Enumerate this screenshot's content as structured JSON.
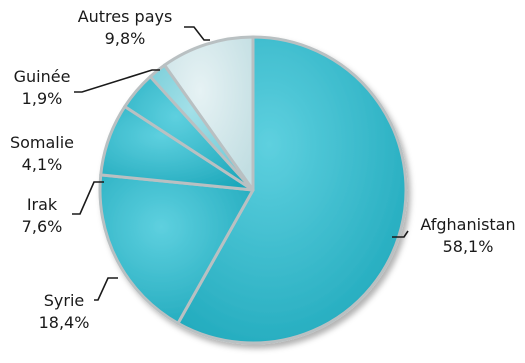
{
  "chart_data": {
    "type": "pie",
    "slices": [
      {
        "label": "Afghanistan",
        "value": 58.1,
        "value_text": "58,1%",
        "color": "#25b3c6"
      },
      {
        "label": "Syrie",
        "value": 18.4,
        "value_text": "18,4%",
        "color": "#25b3c6"
      },
      {
        "label": "Irak",
        "value": 7.6,
        "value_text": "7,6%",
        "color": "#25b3c6"
      },
      {
        "label": "Somalie",
        "value": 4.1,
        "value_text": "4,1%",
        "color": "#25b3c6"
      },
      {
        "label": "Guinée",
        "value": 1.9,
        "value_text": "1,9%",
        "color": "#7fd0db"
      },
      {
        "label": "Autres pays",
        "value": 9.8,
        "value_text": "9,8%",
        "color": "#cfe5e8"
      }
    ],
    "legend": "none"
  }
}
